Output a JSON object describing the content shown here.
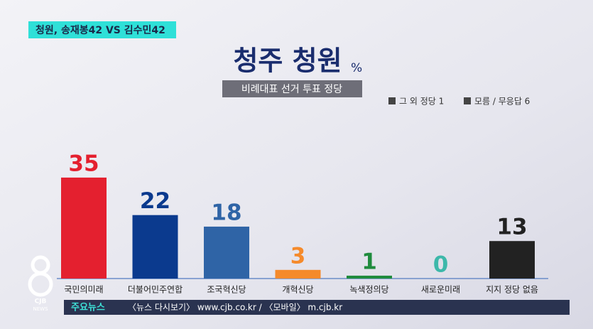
{
  "chart_data": {
    "type": "bar",
    "tag": "청원, 송재봉42 VS 김수민42",
    "title": "청주 청원",
    "unit": "%",
    "subtitle": "비례대표 선거 투표 정당",
    "annotations": [
      "그 외 정당 1",
      "모름 / 무응답 6"
    ],
    "categories": [
      "국민의미래",
      "더불어민주연합",
      "조국혁신당",
      "개혁신당",
      "녹색정의당",
      "새로운미래",
      "지지 정당 없음"
    ],
    "values": [
      35,
      22,
      18,
      3,
      1,
      0,
      13
    ],
    "colors": [
      "#e4202f",
      "#0b3a8e",
      "#2f64a6",
      "#f58a2b",
      "#1f8b3d",
      "#3db8aa",
      "#222222"
    ],
    "ticker": {
      "label": "주요뉴스",
      "text": "〈뉴스 다시보기〉 www.cjb.co.kr / 〈모바일〉 m.cjb.kr"
    },
    "logo": "CJB",
    "logo_sub": "NEWS"
  }
}
